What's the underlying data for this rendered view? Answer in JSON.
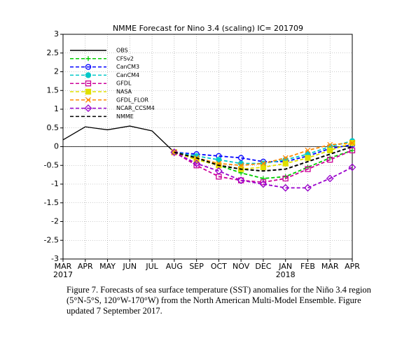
{
  "chart_data": {
    "type": "line",
    "title": "NMME Forecast for Nino 3.4 (scaling) IC= 201709",
    "categories": [
      "MAR",
      "APR",
      "MAY",
      "JUN",
      "JUL",
      "AUG",
      "SEP",
      "OCT",
      "NOV",
      "DEC",
      "JAN",
      "FEB",
      "MAR",
      "APR"
    ],
    "year_labels": [
      "2017",
      null,
      null,
      null,
      null,
      null,
      null,
      null,
      null,
      null,
      "2018",
      null,
      null,
      null
    ],
    "ylim": [
      -3,
      3
    ],
    "yticks": [
      3,
      2.5,
      2,
      1.5,
      1,
      0.5,
      0,
      -0.5,
      -1,
      -1.5,
      -2,
      -2.5,
      -3
    ],
    "grid": true,
    "legend": "upper left",
    "series": [
      {
        "name": "OBS",
        "color": "#000000",
        "marker": "none",
        "dash": false,
        "values": [
          0.18,
          0.53,
          0.45,
          0.55,
          0.42,
          -0.15,
          null,
          null,
          null,
          null,
          null,
          null,
          null,
          null
        ]
      },
      {
        "name": "CFSv2",
        "color": "#00cc00",
        "marker": "plus",
        "dash": true,
        "values": [
          null,
          null,
          null,
          null,
          null,
          -0.15,
          -0.3,
          -0.5,
          -0.7,
          -0.85,
          -0.8,
          -0.55,
          -0.3,
          -0.1
        ]
      },
      {
        "name": "CanCM3",
        "color": "#0000ff",
        "marker": "circle-open",
        "dash": true,
        "values": [
          null,
          null,
          null,
          null,
          null,
          -0.15,
          -0.2,
          -0.25,
          -0.3,
          -0.4,
          -0.4,
          -0.25,
          -0.05,
          0.05
        ]
      },
      {
        "name": "CanCM4",
        "color": "#00c8c8",
        "marker": "circle",
        "dash": true,
        "values": [
          null,
          null,
          null,
          null,
          null,
          -0.15,
          -0.25,
          -0.35,
          -0.45,
          -0.45,
          -0.35,
          -0.2,
          0,
          0.15
        ]
      },
      {
        "name": "GFDL",
        "color": "#cc0099",
        "marker": "square-open",
        "dash": true,
        "values": [
          null,
          null,
          null,
          null,
          null,
          -0.15,
          -0.5,
          -0.8,
          -0.9,
          -0.95,
          -0.85,
          -0.6,
          -0.35,
          -0.1
        ]
      },
      {
        "name": "NASA",
        "color": "#e0e000",
        "marker": "square",
        "dash": true,
        "values": [
          null,
          null,
          null,
          null,
          null,
          -0.15,
          -0.35,
          -0.5,
          -0.6,
          -0.55,
          -0.45,
          -0.3,
          -0.1,
          0.1
        ]
      },
      {
        "name": "GFDL_FLOR",
        "color": "#ff8800",
        "marker": "x",
        "dash": true,
        "values": [
          null,
          null,
          null,
          null,
          null,
          -0.15,
          -0.3,
          -0.45,
          -0.5,
          -0.45,
          -0.3,
          -0.1,
          0.05,
          0.1
        ]
      },
      {
        "name": "NCAR_CCSM4",
        "color": "#9900cc",
        "marker": "diamond-open",
        "dash": true,
        "values": [
          null,
          null,
          null,
          null,
          null,
          -0.15,
          -0.45,
          -0.65,
          -0.9,
          -1.0,
          -1.1,
          -1.1,
          -0.85,
          -0.55
        ]
      },
      {
        "name": "NMME",
        "color": "#000000",
        "marker": "none",
        "dash": true,
        "values": [
          null,
          null,
          null,
          null,
          null,
          -0.15,
          -0.3,
          -0.5,
          -0.6,
          -0.65,
          -0.6,
          -0.4,
          -0.2,
          0
        ]
      }
    ]
  },
  "caption": "Figure 7. Forecasts of sea surface temperature (SST) anomalies for the Niño 3.4 region (5°N-5°S, 120°W-170°W) from the North American Multi-Model Ensemble. Figure updated 7 September 2017."
}
